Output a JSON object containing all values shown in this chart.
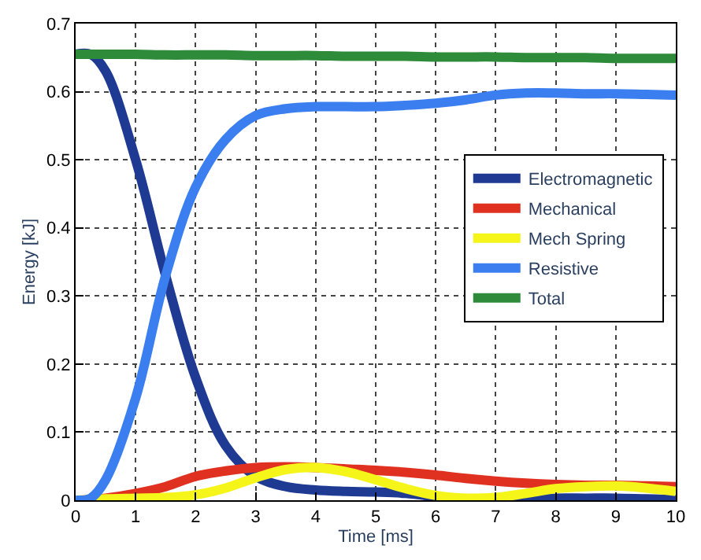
{
  "chart_data": {
    "type": "line",
    "xlabel": "Time [ms]",
    "ylabel": "Energy [kJ]",
    "x": [
      0,
      0.25,
      0.5,
      1,
      1.5,
      2,
      2.5,
      3,
      3.5,
      4,
      4.5,
      5,
      5.5,
      6,
      6.5,
      7,
      7.5,
      8,
      8.5,
      9,
      9.5,
      10
    ],
    "series": [
      {
        "name": "Electromagnetic",
        "color": "#1f3a93",
        "values": [
          0.655,
          0.655,
          0.63,
          0.5,
          0.33,
          0.18,
          0.08,
          0.035,
          0.02,
          0.015,
          0.013,
          0.012,
          0.01,
          0.005,
          null,
          0.001,
          0.002,
          0.003,
          0.003,
          0.003,
          0.002,
          0.001
        ]
      },
      {
        "name": "Mechanical",
        "color": "#e03020",
        "values": [
          0,
          0.001,
          0.003,
          0.01,
          0.02,
          0.035,
          0.043,
          0.048,
          0.049,
          0.048,
          0.046,
          0.044,
          0.041,
          0.037,
          0.032,
          0.028,
          0.025,
          0.023,
          0.022,
          0.022,
          0.021,
          0.02
        ]
      },
      {
        "name": "Mech Spring",
        "color": "#f5f51a",
        "values": [
          0,
          0.001,
          0.002,
          0.003,
          0.004,
          0.008,
          0.018,
          0.033,
          0.045,
          0.048,
          0.042,
          0.03,
          0.017,
          0.007,
          0.003,
          0.004,
          0.01,
          0.017,
          0.02,
          0.021,
          0.018,
          0.013
        ]
      },
      {
        "name": "Resistive",
        "color": "#3a7ef0",
        "values": [
          0,
          0.003,
          0.03,
          0.15,
          0.33,
          0.46,
          0.53,
          0.565,
          0.575,
          0.578,
          0.578,
          0.578,
          0.58,
          0.583,
          0.588,
          0.595,
          0.598,
          0.598,
          0.597,
          0.597,
          0.596,
          0.595
        ]
      },
      {
        "name": "Total",
        "color": "#2e8b3a",
        "values": [
          0.655,
          0.655,
          0.655,
          0.655,
          0.654,
          0.654,
          0.654,
          0.653,
          0.653,
          0.653,
          0.652,
          0.652,
          0.652,
          0.651,
          0.651,
          0.651,
          0.65,
          0.65,
          0.65,
          0.649,
          0.649,
          0.649
        ]
      }
    ],
    "xlim": [
      0,
      10
    ],
    "xticks": [
      0,
      1,
      2,
      3,
      4,
      5,
      6,
      7,
      8,
      9,
      10
    ],
    "ylim": [
      0,
      0.7
    ],
    "yticks": [
      0,
      0.1,
      0.2,
      0.3,
      0.4,
      0.5,
      0.6,
      0.7
    ],
    "grid": true,
    "legend": "right",
    "line_style": "solid"
  }
}
